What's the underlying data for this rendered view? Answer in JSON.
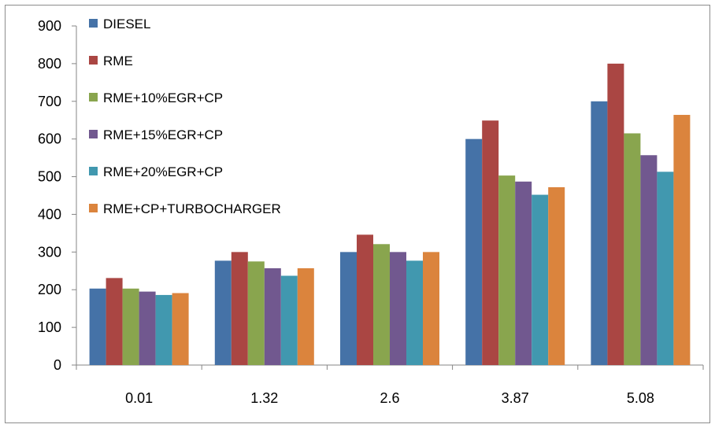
{
  "chart_data": {
    "type": "bar",
    "title": "",
    "xlabel": "",
    "ylabel": "",
    "ylim": [
      0,
      900
    ],
    "y_ticks": [
      "0",
      "100",
      "200",
      "300",
      "400",
      "500",
      "600",
      "700",
      "800",
      "900"
    ],
    "categories": [
      "0.01",
      "1.32",
      "2.6",
      "3.87",
      "5.08"
    ],
    "grid": false,
    "legend_position": "top-left",
    "series": [
      {
        "name": "DIESEL",
        "color": "#4572A7",
        "values": [
          203,
          277,
          300,
          600,
          700
        ]
      },
      {
        "name": "RME",
        "color": "#AA4643",
        "values": [
          231,
          300,
          346,
          649,
          800
        ]
      },
      {
        "name": "RME+10%EGR+CP",
        "color": "#89A54E",
        "values": [
          203,
          275,
          321,
          503,
          615
        ]
      },
      {
        "name": "RME+15%EGR+CP",
        "color": "#71588F",
        "values": [
          195,
          257,
          300,
          487,
          557
        ]
      },
      {
        "name": "RME+20%EGR+CP",
        "color": "#4198AF",
        "values": [
          186,
          237,
          277,
          452,
          513
        ]
      },
      {
        "name": "RME+CP+TURBOCHARGER",
        "color": "#DB843D",
        "values": [
          191,
          257,
          300,
          472,
          664
        ]
      }
    ]
  }
}
